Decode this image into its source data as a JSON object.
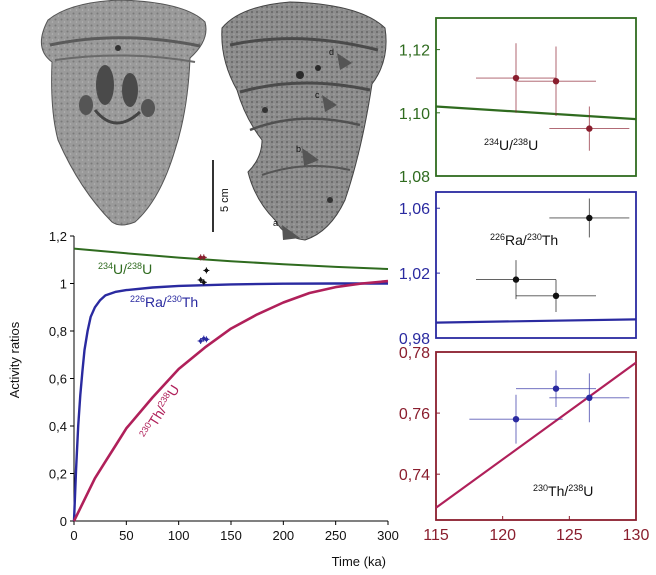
{
  "photos": {
    "scale_bar_label": "5 cm",
    "marker_letters": [
      "d",
      "c",
      "b",
      "a"
    ]
  },
  "colors": {
    "green": "#2f6b1f",
    "blue": "#2a2aa0",
    "magenta": "#b0205a",
    "dark_red": "#8a1e2e",
    "black": "#111111"
  },
  "chart_data": [
    {
      "type": "line",
      "id": "main",
      "xlabel": "Time (ka)",
      "ylabel": "Activity ratios",
      "xlim": [
        0,
        300
      ],
      "ylim": [
        0,
        1.2
      ],
      "xticks": [
        0,
        50,
        100,
        150,
        200,
        250,
        300
      ],
      "xtick_labels": [
        "0",
        "50",
        "100",
        "150",
        "200",
        "250",
        "300"
      ],
      "yticks": [
        0,
        0.2,
        0.4,
        0.6,
        0.8,
        1,
        1.2
      ],
      "ytick_labels": [
        "0",
        "0,2",
        "0,4",
        "0,6",
        "0,8",
        "1",
        "1,2"
      ],
      "series": [
        {
          "name_pre": "234",
          "name_a": "U/",
          "name_mid": "238",
          "name_b": "U",
          "color": "green",
          "x": [
            0,
            50,
            100,
            150,
            200,
            250,
            300
          ],
          "y": [
            1.147,
            1.127,
            1.109,
            1.094,
            1.081,
            1.07,
            1.061
          ]
        },
        {
          "name_pre": "226",
          "name_a": "Ra/",
          "name_mid": "230",
          "name_b": "Th",
          "color": "blue",
          "x": [
            0,
            2,
            4,
            6,
            8,
            10,
            13,
            16,
            20,
            25,
            30,
            40,
            50,
            75,
            100,
            150,
            200,
            250,
            300
          ],
          "y": [
            0,
            0.22,
            0.4,
            0.53,
            0.63,
            0.72,
            0.8,
            0.86,
            0.9,
            0.93,
            0.95,
            0.965,
            0.972,
            0.983,
            0.99,
            0.996,
            0.999,
            1.0,
            1.0
          ]
        },
        {
          "name_pre": "230",
          "name_a": "Th/",
          "name_mid": "238",
          "name_b": "U",
          "color": "magenta",
          "x": [
            0,
            10,
            20,
            30,
            40,
            50,
            75,
            100,
            125,
            150,
            175,
            200,
            225,
            250,
            275,
            300
          ],
          "y": [
            0,
            0.09,
            0.18,
            0.25,
            0.32,
            0.39,
            0.52,
            0.64,
            0.73,
            0.81,
            0.87,
            0.92,
            0.96,
            0.985,
            1.0,
            1.01
          ]
        }
      ],
      "points": [
        {
          "group": "green",
          "x": 121,
          "y": 1.11
        },
        {
          "group": "green",
          "x": 124,
          "y": 1.11
        },
        {
          "group": "black",
          "x": 121,
          "y": 1.015
        },
        {
          "group": "black",
          "x": 124,
          "y": 1.005
        },
        {
          "group": "black",
          "x": 126.5,
          "y": 1.055
        },
        {
          "group": "blue",
          "x": 121,
          "y": 0.758
        },
        {
          "group": "blue",
          "x": 124,
          "y": 0.768
        },
        {
          "group": "blue",
          "x": 126.5,
          "y": 0.765
        }
      ]
    },
    {
      "type": "scatter",
      "id": "u234",
      "xlim": [
        115,
        130
      ],
      "ylim": [
        1.08,
        1.13
      ],
      "yticks": [
        1.08,
        1.1,
        1.12
      ],
      "ytick_labels": [
        "1,08",
        "1,10",
        "1,12"
      ],
      "label_pre": "234",
      "label_a": "U/",
      "label_mid": "238",
      "label_b": "U",
      "line": {
        "x": [
          115,
          130
        ],
        "y": [
          1.102,
          1.098
        ]
      },
      "points": [
        {
          "x": 121,
          "y": 1.111,
          "xerr": 3,
          "yerr": 0.011
        },
        {
          "x": 124,
          "y": 1.11,
          "xerr": 3,
          "yerr": 0.011
        },
        {
          "x": 126.5,
          "y": 1.095,
          "xerr": 3,
          "yerr": 0.007
        }
      ]
    },
    {
      "type": "scatter",
      "id": "ra226",
      "xlim": [
        115,
        130
      ],
      "ylim": [
        0.98,
        1.07
      ],
      "yticks": [
        0.98,
        1.02,
        1.06
      ],
      "ytick_labels": [
        "0,98",
        "1,02",
        "1,06"
      ],
      "label_pre": "226",
      "label_a": "Ra/",
      "label_mid": "230",
      "label_b": "Th",
      "line": {
        "x": [
          115,
          130
        ],
        "y": [
          0.9895,
          0.9915
        ]
      },
      "points": [
        {
          "x": 121,
          "y": 1.016,
          "xerr": 3,
          "yerr": 0.012
        },
        {
          "x": 124,
          "y": 1.006,
          "xerr": 3,
          "yerr": 0.01
        },
        {
          "x": 126.5,
          "y": 1.054,
          "xerr": 3,
          "yerr": 0.012
        }
      ]
    },
    {
      "type": "scatter",
      "id": "th230",
      "xlim": [
        115,
        130
      ],
      "ylim": [
        0.725,
        0.78
      ],
      "xticks": [
        115,
        120,
        125,
        130
      ],
      "xtick_labels": [
        "115",
        "120",
        "125",
        "130"
      ],
      "yticks": [
        0.74,
        0.76,
        0.78
      ],
      "ytick_labels": [
        "0,74",
        "0,76",
        "0,78"
      ],
      "label_pre": "230",
      "label_a": "Th/",
      "label_mid": "238",
      "label_b": "U",
      "line": {
        "x": [
          115,
          130
        ],
        "y": [
          0.729,
          0.7765
        ]
      },
      "points": [
        {
          "x": 121,
          "y": 0.758,
          "xerr": 3.5,
          "yerr": 0.008
        },
        {
          "x": 124,
          "y": 0.768,
          "xerr": 3,
          "yerr": 0.006
        },
        {
          "x": 126.5,
          "y": 0.765,
          "xerr": 3,
          "yerr": 0.008
        }
      ]
    }
  ]
}
